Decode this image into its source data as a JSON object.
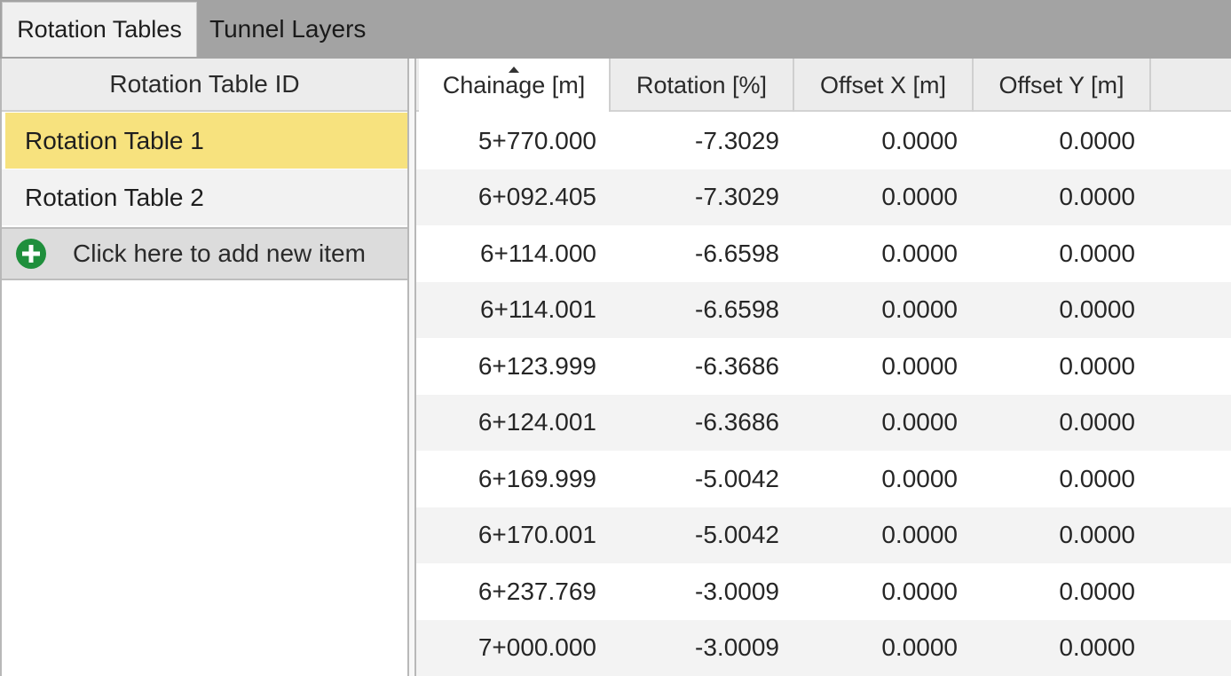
{
  "tabs": [
    {
      "label": "Rotation Tables",
      "active": true
    },
    {
      "label": "Tunnel Layers",
      "active": false
    }
  ],
  "left_panel": {
    "header": "Rotation Table ID",
    "items": [
      {
        "label": "Rotation Table 1",
        "selected": true
      },
      {
        "label": "Rotation Table 2",
        "selected": false
      }
    ],
    "add_item_label": "Click here to add new item",
    "add_icon": "plus-circle-icon"
  },
  "grid": {
    "columns": [
      "Chainage [m]",
      "Rotation [%]",
      "Offset X [m]",
      "Offset Y [m]"
    ],
    "sorted_column": "Chainage [m]",
    "sort_direction": "ascending",
    "rows": [
      [
        "5+770.000",
        "-7.3029",
        "0.0000",
        "0.0000"
      ],
      [
        "6+092.405",
        "-7.3029",
        "0.0000",
        "0.0000"
      ],
      [
        "6+114.000",
        "-6.6598",
        "0.0000",
        "0.0000"
      ],
      [
        "6+114.001",
        "-6.6598",
        "0.0000",
        "0.0000"
      ],
      [
        "6+123.999",
        "-6.3686",
        "0.0000",
        "0.0000"
      ],
      [
        "6+124.001",
        "-6.3686",
        "0.0000",
        "0.0000"
      ],
      [
        "6+169.999",
        "-5.0042",
        "0.0000",
        "0.0000"
      ],
      [
        "6+170.001",
        "-5.0042",
        "0.0000",
        "0.0000"
      ],
      [
        "6+237.769",
        "-3.0009",
        "0.0000",
        "0.0000"
      ],
      [
        "7+000.000",
        "-3.0009",
        "0.0000",
        "0.0000"
      ]
    ]
  },
  "colors": {
    "selected_row": "#f7e27e",
    "tab_bar": "#a3a3a3",
    "add_icon": "#1f8f3c"
  }
}
